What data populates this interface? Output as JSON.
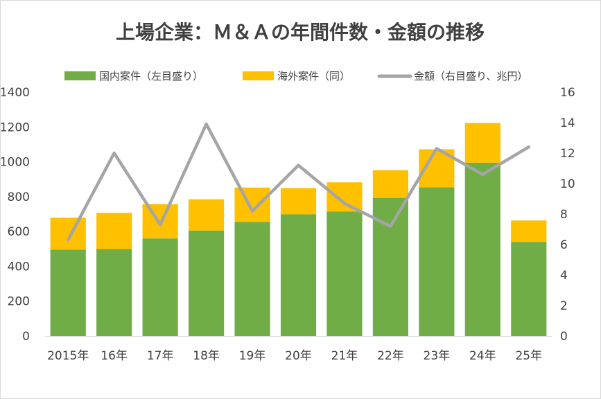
{
  "chart_data": {
    "type": "bar",
    "title": "上場企業：Ｍ＆Ａの年間件数・金額の推移",
    "categories": [
      "2015年",
      "16年",
      "17年",
      "18年",
      "19年",
      "20年",
      "21年",
      "22年",
      "23年",
      "24年",
      "25年"
    ],
    "series": [
      {
        "name": "国内案件（左目盛り）",
        "type": "bar",
        "axis": "left",
        "stack": "count",
        "color": "#70ad47",
        "values": [
          496,
          500,
          560,
          605,
          655,
          698,
          714,
          793,
          854,
          995,
          540
        ]
      },
      {
        "name": "海外案件（同）",
        "type": "bar",
        "axis": "left",
        "stack": "count",
        "color": "#ffc000",
        "values": [
          183,
          207,
          197,
          180,
          197,
          151,
          168,
          159,
          218,
          228,
          123
        ]
      },
      {
        "name": "金額（右目盛り、兆円）",
        "type": "line",
        "axis": "right",
        "color": "#a5a5a5",
        "values": [
          6.3,
          12.0,
          7.3,
          13.9,
          8.2,
          11.2,
          8.7,
          7.2,
          12.3,
          10.6,
          12.4
        ]
      }
    ],
    "y_left": {
      "min": 0,
      "max": 1400,
      "ticks": [
        0,
        200,
        400,
        600,
        800,
        1000,
        1200,
        1400
      ]
    },
    "y_right": {
      "min": 0,
      "max": 16,
      "ticks": [
        0,
        2,
        4,
        6,
        8,
        10,
        12,
        14,
        16
      ]
    },
    "grid": false,
    "legend_position": "top"
  }
}
